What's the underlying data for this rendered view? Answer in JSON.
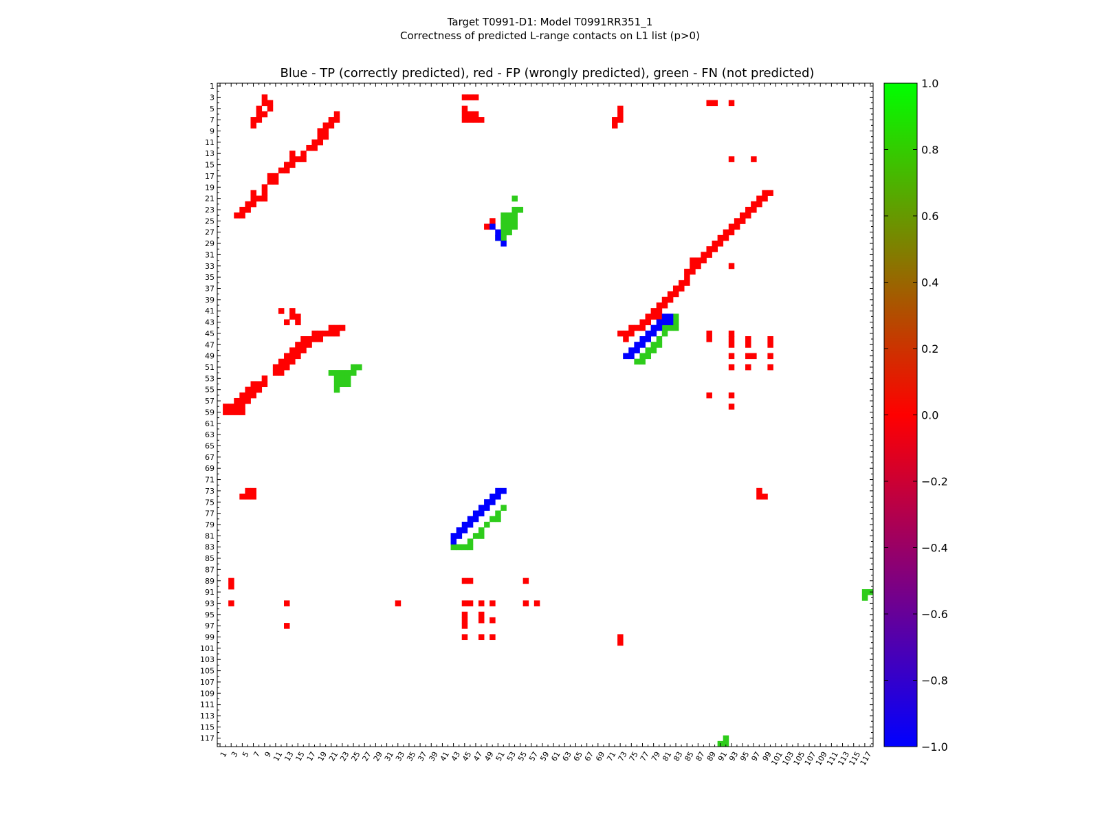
{
  "figure": {
    "title_line1": "Target T0991-D1: Model T0991RR351_1",
    "title_line2": "Correctness of predicted L-range contacts on L1 list (p>0)"
  },
  "chart_data": {
    "type": "heatmap",
    "title": "Blue - TP (correctly predicted), red - FP (wrongly predicted), green - FN (not predicted)",
    "x_range": [
      1,
      118
    ],
    "y_range": [
      1,
      118
    ],
    "y_inverted": true,
    "x_ticks": [
      1,
      3,
      5,
      7,
      9,
      11,
      13,
      15,
      17,
      19,
      21,
      23,
      25,
      27,
      29,
      31,
      33,
      35,
      37,
      39,
      41,
      43,
      45,
      47,
      49,
      51,
      53,
      55,
      57,
      59,
      61,
      63,
      65,
      67,
      69,
      71,
      73,
      75,
      77,
      79,
      81,
      83,
      85,
      87,
      89,
      91,
      93,
      95,
      97,
      99,
      101,
      103,
      105,
      107,
      109,
      111,
      113,
      115,
      117
    ],
    "y_ticks": [
      1,
      3,
      5,
      7,
      9,
      11,
      13,
      15,
      17,
      19,
      21,
      23,
      25,
      27,
      29,
      31,
      33,
      35,
      37,
      39,
      41,
      43,
      45,
      47,
      49,
      51,
      53,
      55,
      57,
      59,
      61,
      63,
      65,
      67,
      69,
      71,
      73,
      75,
      77,
      79,
      81,
      83,
      85,
      87,
      89,
      91,
      93,
      95,
      97,
      99,
      101,
      103,
      105,
      107,
      109,
      111,
      113,
      115,
      117
    ],
    "colorbar": {
      "min": -1.0,
      "max": 1.0,
      "ticks": [
        "1.0",
        "0.8",
        "0.6",
        "0.4",
        "0.2",
        "0.0",
        "−0.2",
        "−0.4",
        "−0.6",
        "−0.8",
        "−1.0"
      ],
      "tick_values": [
        1.0,
        0.8,
        0.6,
        0.4,
        0.2,
        0.0,
        -0.2,
        -0.4,
        -0.6,
        -0.8,
        -1.0
      ],
      "colors": [
        "#0000ff",
        "#ff0000",
        "#00ff00"
      ]
    },
    "category_colors": {
      "TP": "#0000ff",
      "FP": "#ff0000",
      "FN": "#2ecc1b"
    },
    "cells": {
      "FP": [
        [
          58,
          2
        ],
        [
          59,
          2
        ],
        [
          58,
          3
        ],
        [
          59,
          3
        ],
        [
          57,
          4
        ],
        [
          58,
          4
        ],
        [
          59,
          4
        ],
        [
          56,
          5
        ],
        [
          57,
          5
        ],
        [
          58,
          5
        ],
        [
          59,
          5
        ],
        [
          55,
          6
        ],
        [
          56,
          6
        ],
        [
          57,
          6
        ],
        [
          54,
          7
        ],
        [
          55,
          7
        ],
        [
          56,
          7
        ],
        [
          54,
          8
        ],
        [
          55,
          8
        ],
        [
          54,
          9
        ],
        [
          53,
          9
        ],
        [
          51,
          11
        ],
        [
          52,
          11
        ],
        [
          50,
          12
        ],
        [
          51,
          12
        ],
        [
          52,
          12
        ],
        [
          49,
          13
        ],
        [
          50,
          13
        ],
        [
          51,
          13
        ],
        [
          48,
          14
        ],
        [
          49,
          14
        ],
        [
          50,
          14
        ],
        [
          47,
          15
        ],
        [
          48,
          15
        ],
        [
          49,
          15
        ],
        [
          46,
          16
        ],
        [
          47,
          16
        ],
        [
          48,
          16
        ],
        [
          46,
          17
        ],
        [
          47,
          17
        ],
        [
          45,
          18
        ],
        [
          46,
          18
        ],
        [
          45,
          19
        ],
        [
          46,
          19
        ],
        [
          45,
          20
        ],
        [
          44,
          21
        ],
        [
          45,
          21
        ],
        [
          44,
          22
        ],
        [
          45,
          22
        ],
        [
          44,
          23
        ],
        [
          42,
          15
        ],
        [
          43,
          15
        ],
        [
          42,
          14
        ],
        [
          43,
          13
        ],
        [
          41,
          14
        ],
        [
          41,
          12
        ],
        [
          24,
          4
        ],
        [
          24,
          5
        ],
        [
          23,
          5
        ],
        [
          23,
          6
        ],
        [
          22,
          6
        ],
        [
          22,
          7
        ],
        [
          21,
          7
        ],
        [
          20,
          7
        ],
        [
          21,
          8
        ],
        [
          21,
          9
        ],
        [
          20,
          9
        ],
        [
          19,
          9
        ],
        [
          18,
          10
        ],
        [
          18,
          11
        ],
        [
          17,
          10
        ],
        [
          17,
          11
        ],
        [
          16,
          12
        ],
        [
          16,
          13
        ],
        [
          15,
          13
        ],
        [
          15,
          14
        ],
        [
          14,
          14
        ],
        [
          13,
          14
        ],
        [
          14,
          15
        ],
        [
          14,
          16
        ],
        [
          13,
          16
        ],
        [
          12,
          17
        ],
        [
          12,
          18
        ],
        [
          11,
          18
        ],
        [
          11,
          19
        ],
        [
          10,
          19
        ],
        [
          10,
          20
        ],
        [
          9,
          19
        ],
        [
          9,
          20
        ],
        [
          8,
          20
        ],
        [
          8,
          21
        ],
        [
          7,
          21
        ],
        [
          7,
          22
        ],
        [
          6,
          22
        ],
        [
          3,
          9
        ],
        [
          4,
          9
        ],
        [
          4,
          10
        ],
        [
          5,
          10
        ],
        [
          6,
          9
        ],
        [
          5,
          8
        ],
        [
          6,
          8
        ],
        [
          7,
          8
        ],
        [
          7,
          7
        ],
        [
          8,
          7
        ],
        [
          3,
          45
        ],
        [
          3,
          46
        ],
        [
          3,
          47
        ],
        [
          5,
          45
        ],
        [
          6,
          45
        ],
        [
          6,
          46
        ],
        [
          6,
          47
        ],
        [
          7,
          45
        ],
        [
          7,
          46
        ],
        [
          7,
          47
        ],
        [
          7,
          48
        ],
        [
          5,
          73
        ],
        [
          6,
          73
        ],
        [
          7,
          72
        ],
        [
          7,
          73
        ],
        [
          8,
          72
        ],
        [
          4,
          89
        ],
        [
          4,
          90
        ],
        [
          4,
          93
        ],
        [
          14,
          93
        ],
        [
          14,
          97
        ],
        [
          33,
          93
        ],
        [
          45,
          89
        ],
        [
          46,
          89
        ],
        [
          45,
          93
        ],
        [
          46,
          93
        ],
        [
          47,
          93
        ],
        [
          49,
          93
        ],
        [
          51,
          93
        ],
        [
          46,
          96
        ],
        [
          47,
          96
        ],
        [
          49,
          96
        ],
        [
          49,
          97
        ],
        [
          51,
          96
        ],
        [
          46,
          100
        ],
        [
          47,
          100
        ],
        [
          49,
          100
        ],
        [
          51,
          100
        ],
        [
          56,
          89
        ],
        [
          56,
          93
        ],
        [
          58,
          93
        ],
        [
          73,
          6
        ],
        [
          73,
          7
        ],
        [
          74,
          6
        ],
        [
          74,
          7
        ],
        [
          74,
          5
        ],
        [
          74,
          98
        ],
        [
          74,
          99
        ],
        [
          73,
          98
        ],
        [
          89,
          3
        ],
        [
          90,
          3
        ],
        [
          93,
          3
        ],
        [
          93,
          13
        ],
        [
          97,
          13
        ],
        [
          93,
          33
        ],
        [
          89,
          45
        ],
        [
          89,
          46
        ],
        [
          93,
          45
        ],
        [
          93,
          46
        ],
        [
          93,
          48
        ],
        [
          93,
          50
        ],
        [
          95,
          45
        ],
        [
          96,
          45
        ],
        [
          97,
          45
        ],
        [
          95,
          48
        ],
        [
          96,
          48
        ],
        [
          96,
          50
        ],
        [
          99,
          45
        ],
        [
          99,
          48
        ],
        [
          99,
          50
        ],
        [
          89,
          56
        ],
        [
          93,
          56
        ],
        [
          93,
          58
        ],
        [
          99,
          73
        ],
        [
          100,
          73
        ],
        [
          45,
          73
        ],
        [
          46,
          74
        ],
        [
          45,
          74
        ],
        [
          44,
          75
        ],
        [
          45,
          75
        ],
        [
          44,
          76
        ],
        [
          43,
          77
        ],
        [
          44,
          77
        ],
        [
          42,
          78
        ],
        [
          43,
          78
        ],
        [
          41,
          79
        ],
        [
          42,
          79
        ],
        [
          41,
          80
        ],
        [
          42,
          80
        ],
        [
          40,
          80
        ],
        [
          40,
          81
        ],
        [
          39,
          81
        ],
        [
          39,
          82
        ],
        [
          38,
          82
        ],
        [
          37,
          83
        ],
        [
          38,
          83
        ],
        [
          37,
          84
        ],
        [
          36,
          84
        ],
        [
          35,
          85
        ],
        [
          36,
          85
        ],
        [
          34,
          85
        ],
        [
          34,
          86
        ],
        [
          33,
          86
        ],
        [
          32,
          86
        ],
        [
          33,
          87
        ],
        [
          32,
          87
        ],
        [
          31,
          88
        ],
        [
          32,
          88
        ],
        [
          31,
          89
        ],
        [
          30,
          89
        ],
        [
          30,
          90
        ],
        [
          29,
          90
        ],
        [
          28,
          91
        ],
        [
          29,
          91
        ],
        [
          28,
          92
        ],
        [
          27,
          92
        ],
        [
          27,
          93
        ],
        [
          26,
          93
        ],
        [
          26,
          94
        ],
        [
          25,
          94
        ],
        [
          25,
          95
        ],
        [
          24,
          95
        ],
        [
          24,
          96
        ],
        [
          23,
          96
        ],
        [
          22,
          97
        ],
        [
          23,
          97
        ],
        [
          22,
          98
        ],
        [
          21,
          98
        ],
        [
          21,
          99
        ],
        [
          20,
          99
        ],
        [
          20,
          100
        ],
        [
          25,
          50
        ],
        [
          26,
          49
        ],
        [
          26,
          50
        ]
      ],
      "TP": [
        [
          26,
          50
        ],
        [
          27,
          51
        ],
        [
          28,
          51
        ],
        [
          29,
          52
        ],
        [
          49,
          74
        ],
        [
          49,
          75
        ],
        [
          48,
          75
        ],
        [
          48,
          76
        ],
        [
          47,
          76
        ],
        [
          47,
          77
        ],
        [
          46,
          77
        ],
        [
          46,
          78
        ],
        [
          45,
          78
        ],
        [
          45,
          79
        ],
        [
          44,
          79
        ],
        [
          44,
          80
        ],
        [
          43,
          80
        ],
        [
          43,
          81
        ],
        [
          43,
          82
        ],
        [
          42,
          82
        ],
        [
          42,
          81
        ],
        [
          82,
          43
        ],
        [
          81,
          43
        ],
        [
          81,
          44
        ],
        [
          80,
          44
        ],
        [
          80,
          45
        ],
        [
          79,
          45
        ],
        [
          79,
          46
        ],
        [
          78,
          46
        ],
        [
          78,
          47
        ],
        [
          77,
          47
        ],
        [
          77,
          48
        ],
        [
          76,
          48
        ],
        [
          76,
          49
        ],
        [
          75,
          49
        ],
        [
          75,
          50
        ],
        [
          74,
          50
        ],
        [
          74,
          51
        ],
        [
          73,
          51
        ],
        [
          73,
          52
        ]
      ],
      "FN": [
        [
          21,
          54
        ],
        [
          23,
          54
        ],
        [
          23,
          55
        ],
        [
          24,
          52
        ],
        [
          24,
          53
        ],
        [
          24,
          54
        ],
        [
          25,
          52
        ],
        [
          25,
          53
        ],
        [
          25,
          54
        ],
        [
          26,
          52
        ],
        [
          26,
          53
        ],
        [
          26,
          54
        ],
        [
          27,
          52
        ],
        [
          27,
          53
        ],
        [
          28,
          51
        ],
        [
          28,
          52
        ],
        [
          50,
          76
        ],
        [
          50,
          77
        ],
        [
          49,
          77
        ],
        [
          49,
          78
        ],
        [
          48,
          78
        ],
        [
          48,
          79
        ],
        [
          47,
          79
        ],
        [
          47,
          80
        ],
        [
          46,
          80
        ],
        [
          45,
          81
        ],
        [
          44,
          81
        ],
        [
          44,
          82
        ],
        [
          43,
          82
        ],
        [
          42,
          83
        ],
        [
          43,
          83
        ],
        [
          44,
          83
        ],
        [
          83,
          43
        ],
        [
          83,
          44
        ],
        [
          83,
          45
        ],
        [
          83,
          46
        ],
        [
          82,
          46
        ],
        [
          81,
          47
        ],
        [
          81,
          48
        ],
        [
          80,
          48
        ],
        [
          79,
          49
        ],
        [
          78,
          50
        ],
        [
          78,
          51
        ],
        [
          77,
          51
        ],
        [
          76,
          52
        ],
        [
          52,
          21
        ],
        [
          52,
          22
        ],
        [
          52,
          23
        ],
        [
          53,
          22
        ],
        [
          53,
          23
        ],
        [
          54,
          22
        ],
        [
          54,
          23
        ],
        [
          55,
          22
        ],
        [
          54,
          24
        ],
        [
          53,
          24
        ],
        [
          52,
          24
        ],
        [
          51,
          25
        ],
        [
          52,
          25
        ],
        [
          51,
          26
        ],
        [
          91,
          117
        ],
        [
          91,
          118
        ],
        [
          92,
          117
        ],
        [
          118,
          91
        ],
        [
          118,
          92
        ],
        [
          117,
          92
        ]
      ]
    }
  }
}
